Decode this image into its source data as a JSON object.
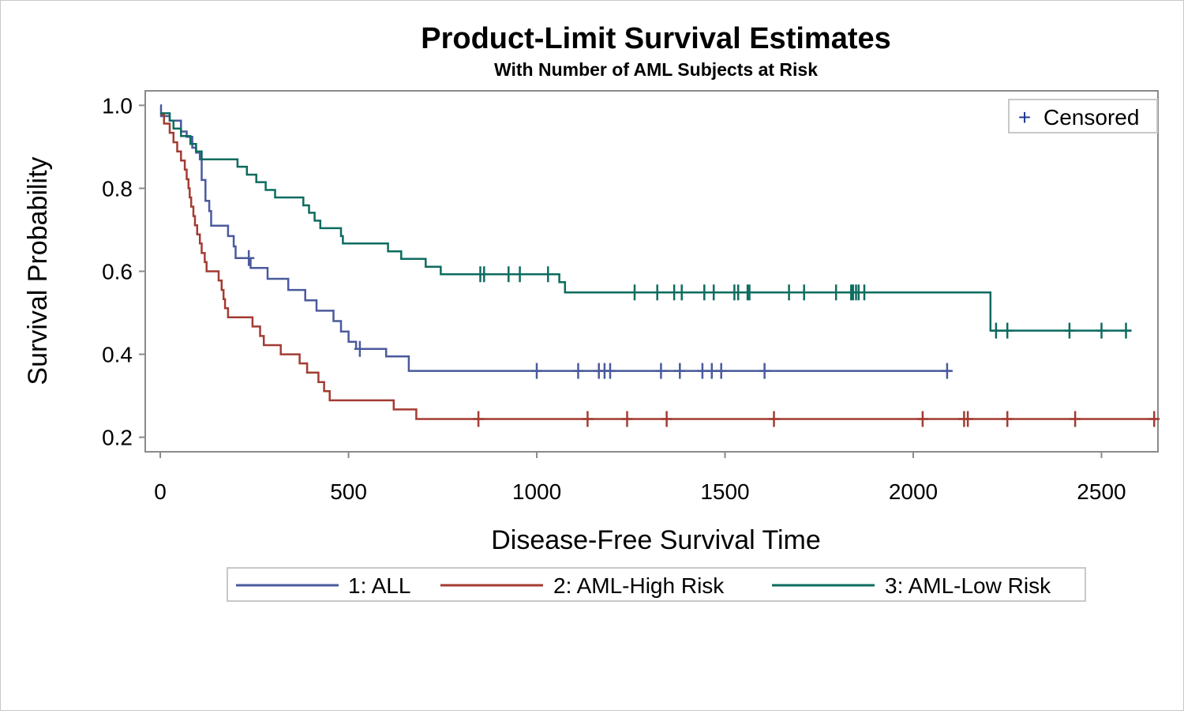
{
  "chart_data": {
    "type": "line",
    "step": true,
    "title": "Product-Limit Survival Estimates",
    "subtitle": "With Number of AML Subjects at Risk",
    "xlabel": "Disease-Free Survival Time",
    "ylabel": "Survival Probability",
    "xlim": [
      -40,
      2650
    ],
    "ylim": [
      0.165,
      1.035
    ],
    "x_ticks": [
      0,
      500,
      1000,
      1500,
      2000,
      2500
    ],
    "x_tick_labels": [
      "0",
      "500",
      "1000",
      "1500",
      "2000",
      "2500"
    ],
    "y_ticks": [
      0.2,
      0.4,
      0.6,
      0.8,
      1.0
    ],
    "y_tick_labels": [
      "0.2",
      "0.4",
      "0.6",
      "0.8",
      "1.0"
    ],
    "grid": false,
    "censor_legend": {
      "symbol": "+",
      "label": "Censored",
      "position": "top-right",
      "color": "#1f3a8f"
    },
    "legend_position": "bottom",
    "series": [
      {
        "name": "1: ALL",
        "color": "#4a5a9c",
        "steps": [
          [
            0,
            1.0
          ],
          [
            2,
            0.974
          ],
          [
            18,
            0.974
          ],
          [
            25,
            0.963
          ],
          [
            55,
            0.937
          ],
          [
            70,
            0.924
          ],
          [
            85,
            0.898
          ],
          [
            95,
            0.886
          ],
          [
            105,
            0.87
          ],
          [
            110,
            0.82
          ],
          [
            120,
            0.77
          ],
          [
            130,
            0.745
          ],
          [
            135,
            0.71
          ],
          [
            175,
            0.71
          ],
          [
            180,
            0.685
          ],
          [
            195,
            0.66
          ],
          [
            200,
            0.632
          ],
          [
            240,
            0.608
          ],
          [
            285,
            0.582
          ],
          [
            340,
            0.555
          ],
          [
            385,
            0.53
          ],
          [
            415,
            0.505
          ],
          [
            460,
            0.48
          ],
          [
            480,
            0.455
          ],
          [
            500,
            0.43
          ],
          [
            520,
            0.413
          ],
          [
            600,
            0.395
          ],
          [
            660,
            0.36
          ],
          [
            2100,
            0.36
          ]
        ],
        "censored": [
          [
            235,
            0.632
          ],
          [
            530,
            0.413
          ],
          [
            1000,
            0.36
          ],
          [
            1110,
            0.36
          ],
          [
            1165,
            0.36
          ],
          [
            1180,
            0.36
          ],
          [
            1195,
            0.36
          ],
          [
            1330,
            0.36
          ],
          [
            1380,
            0.36
          ],
          [
            1440,
            0.36
          ],
          [
            1465,
            0.36
          ],
          [
            1490,
            0.36
          ],
          [
            1605,
            0.36
          ],
          [
            2090,
            0.36
          ]
        ]
      },
      {
        "name": "2: AML-High Risk",
        "color": "#a33b32",
        "steps": [
          [
            0,
            0.978
          ],
          [
            10,
            0.956
          ],
          [
            25,
            0.934
          ],
          [
            35,
            0.911
          ],
          [
            45,
            0.889
          ],
          [
            55,
            0.867
          ],
          [
            65,
            0.845
          ],
          [
            70,
            0.822
          ],
          [
            75,
            0.8
          ],
          [
            78,
            0.778
          ],
          [
            82,
            0.756
          ],
          [
            88,
            0.733
          ],
          [
            92,
            0.711
          ],
          [
            98,
            0.689
          ],
          [
            105,
            0.667
          ],
          [
            110,
            0.644
          ],
          [
            118,
            0.622
          ],
          [
            123,
            0.6
          ],
          [
            155,
            0.578
          ],
          [
            163,
            0.555
          ],
          [
            168,
            0.533
          ],
          [
            172,
            0.511
          ],
          [
            180,
            0.489
          ],
          [
            245,
            0.467
          ],
          [
            265,
            0.444
          ],
          [
            275,
            0.422
          ],
          [
            320,
            0.4
          ],
          [
            370,
            0.378
          ],
          [
            390,
            0.356
          ],
          [
            420,
            0.333
          ],
          [
            435,
            0.311
          ],
          [
            450,
            0.289
          ],
          [
            490,
            0.289
          ],
          [
            560,
            0.289
          ],
          [
            620,
            0.267
          ],
          [
            680,
            0.244
          ],
          [
            2650,
            0.244
          ]
        ],
        "censored": [
          [
            845,
            0.244
          ],
          [
            1135,
            0.244
          ],
          [
            1240,
            0.244
          ],
          [
            1345,
            0.244
          ],
          [
            1630,
            0.244
          ],
          [
            2025,
            0.244
          ],
          [
            2135,
            0.244
          ],
          [
            2145,
            0.244
          ],
          [
            2250,
            0.244
          ],
          [
            2430,
            0.244
          ],
          [
            2640,
            0.244
          ]
        ]
      },
      {
        "name": "3: AML-Low Risk",
        "color": "#0d6b5f",
        "steps": [
          [
            0,
            0.981
          ],
          [
            25,
            0.963
          ],
          [
            35,
            0.944
          ],
          [
            55,
            0.926
          ],
          [
            80,
            0.907
          ],
          [
            95,
            0.889
          ],
          [
            110,
            0.87
          ],
          [
            205,
            0.852
          ],
          [
            230,
            0.833
          ],
          [
            255,
            0.815
          ],
          [
            280,
            0.796
          ],
          [
            305,
            0.778
          ],
          [
            380,
            0.759
          ],
          [
            395,
            0.741
          ],
          [
            410,
            0.722
          ],
          [
            425,
            0.704
          ],
          [
            480,
            0.685
          ],
          [
            485,
            0.667
          ],
          [
            605,
            0.648
          ],
          [
            640,
            0.63
          ],
          [
            705,
            0.611
          ],
          [
            745,
            0.593
          ],
          [
            1060,
            0.574
          ],
          [
            1075,
            0.549
          ],
          [
            2200,
            0.549
          ],
          [
            2205,
            0.457
          ],
          [
            2580,
            0.457
          ]
        ],
        "censored": [
          [
            850,
            0.593
          ],
          [
            860,
            0.593
          ],
          [
            925,
            0.593
          ],
          [
            955,
            0.593
          ],
          [
            1030,
            0.593
          ],
          [
            1260,
            0.549
          ],
          [
            1320,
            0.549
          ],
          [
            1365,
            0.549
          ],
          [
            1385,
            0.549
          ],
          [
            1445,
            0.549
          ],
          [
            1470,
            0.549
          ],
          [
            1525,
            0.549
          ],
          [
            1535,
            0.549
          ],
          [
            1560,
            0.549
          ],
          [
            1565,
            0.549
          ],
          [
            1670,
            0.549
          ],
          [
            1710,
            0.549
          ],
          [
            1795,
            0.549
          ],
          [
            1835,
            0.549
          ],
          [
            1840,
            0.549
          ],
          [
            1848,
            0.549
          ],
          [
            1855,
            0.549
          ],
          [
            1870,
            0.549
          ],
          [
            2220,
            0.457
          ],
          [
            2250,
            0.457
          ],
          [
            2415,
            0.457
          ],
          [
            2500,
            0.457
          ],
          [
            2565,
            0.457
          ]
        ]
      }
    ]
  }
}
